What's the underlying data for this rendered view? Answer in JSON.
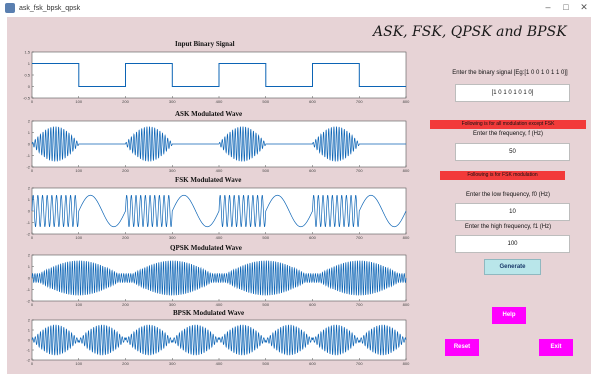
{
  "window": {
    "title": "ask_fsk_bpsk_qpsk"
  },
  "heading": "ASK, FSK, QPSK and BPSK",
  "plots": [
    {
      "title": "Input Binary Signal",
      "kind": "binary"
    },
    {
      "title": "ASK Modulated Wave",
      "kind": "ask"
    },
    {
      "title": "FSK Modulated Wave",
      "kind": "fsk"
    },
    {
      "title": "QPSK Modulated Wave",
      "kind": "qpsk"
    },
    {
      "title": "BPSK Modulated Wave",
      "kind": "bpsk"
    }
  ],
  "x_ticks": [
    "0",
    "100",
    "200",
    "300",
    "400",
    "500",
    "600",
    "700",
    "800"
  ],
  "y_ticks_binary": [
    "1.5",
    "1",
    "0.5",
    "0",
    "-0.5"
  ],
  "y_ticks_wave": [
    "2",
    "1",
    "0",
    "-1",
    "-2"
  ],
  "binary_bits": [
    1,
    0,
    1,
    0,
    1,
    0,
    1,
    0
  ],
  "controls": {
    "binary_label": "Enter the binary signal [Eg:[1 0 0 1 0 1 1 0]]",
    "binary_value": "[1 0 1 0 1 0 1 0]",
    "banner_all": "Following is for all modulation except FSK",
    "freq_label": "Enter the frequency, f (Hz)",
    "freq_value": "50",
    "banner_fsk": "Following is for FSK modulation",
    "low_freq_label": "Enter the low frequency, f0 (Hz)",
    "low_freq_value": "10",
    "high_freq_label": "Enter the high frequency, f1 (Hz)",
    "high_freq_value": "100",
    "generate_label": "Generate",
    "help_label": "Help",
    "reset_label": "Reset",
    "exit_label": "Exit"
  },
  "colors": {
    "background": "#e7d3d6",
    "wave": "#0c64b5",
    "banner": "#f23a3a",
    "action_button": "#ff00ff",
    "generate_button": "#b9e6ea"
  }
}
